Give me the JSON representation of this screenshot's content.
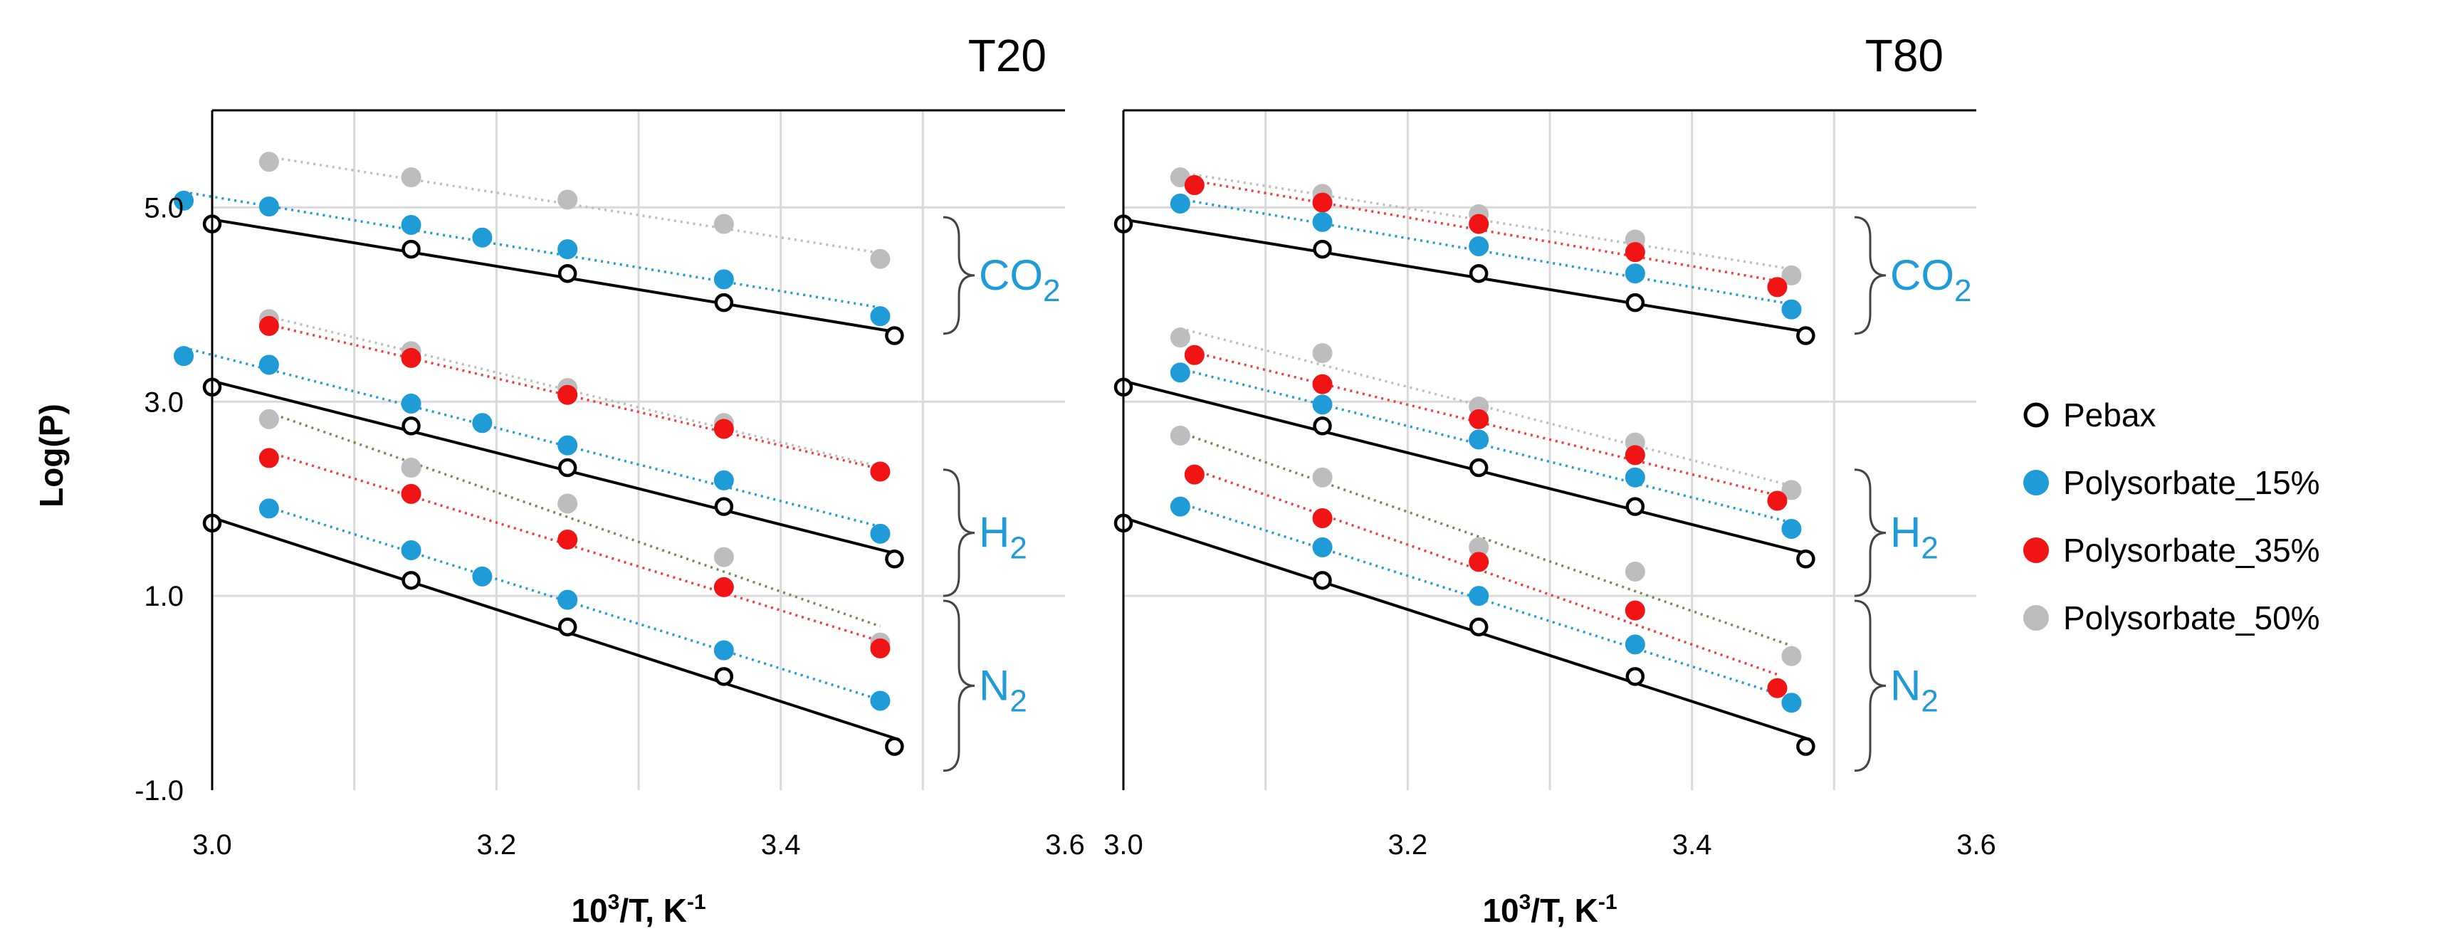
{
  "chart_data": {
    "type": "scatter",
    "y_axis_title": "Log(P)",
    "x_axis_title": {
      "base": "10",
      "sup1": "3",
      "mid": "/T, K",
      "sup2": "-1"
    },
    "xlim": [
      3.0,
      3.6
    ],
    "ylim": [
      -1.0,
      6.0
    ],
    "x_ticks": [
      "3.0",
      "3.2",
      "3.4",
      "3.6"
    ],
    "y_ticks": [
      "5.0",
      "3.0",
      "1.0",
      "-1.0"
    ],
    "legend": [
      {
        "name": "Pebax",
        "color": "#ffffff",
        "edge": "#000000"
      },
      {
        "name": "Polysorbate_15%",
        "color": "#1f9bd7",
        "edge": "#1f9bd7"
      },
      {
        "name": "Polysorbate_35%",
        "color": "#f01414",
        "edge": "#f01414"
      },
      {
        "name": "Polysorbate_50%",
        "color": "#bdbdbd",
        "edge": "#bdbdbd"
      }
    ],
    "gas_labels": [
      {
        "base": "CO",
        "sub": "2",
        "ymin": 3.7,
        "ymax": 4.9
      },
      {
        "base": "H",
        "sub": "2",
        "ymin": 1.0,
        "ymax": 2.3
      },
      {
        "base": "N",
        "sub": "2",
        "ymin": -0.8,
        "ymax": 0.95
      }
    ],
    "panels": [
      {
        "title": "T20",
        "series": [
          {
            "name": "Pebax",
            "gas": "CO2",
            "x": [
              3.0,
              3.14,
              3.25,
              3.36,
              3.48
            ],
            "y": [
              4.83,
              4.57,
              4.32,
              4.02,
              3.68
            ]
          },
          {
            "name": "Polysorbate_15%",
            "gas": "CO2",
            "x": [
              2.98,
              3.04,
              3.14,
              3.19,
              3.25,
              3.36,
              3.47
            ],
            "y": [
              5.07,
              5.01,
              4.82,
              4.69,
              4.57,
              4.26,
              3.88
            ]
          },
          {
            "name": "Polysorbate_50%",
            "gas": "CO2",
            "x": [
              3.04,
              3.14,
              3.25,
              3.36,
              3.47
            ],
            "y": [
              5.47,
              5.31,
              5.08,
              4.83,
              4.47
            ]
          },
          {
            "name": "Pebax",
            "gas": "H2",
            "x": [
              3.0,
              3.14,
              3.25,
              3.36,
              3.48
            ],
            "y": [
              3.15,
              2.75,
              2.32,
              1.92,
              1.38
            ]
          },
          {
            "name": "Polysorbate_15%",
            "gas": "H2",
            "x": [
              2.98,
              3.04,
              3.14,
              3.19,
              3.25,
              3.36,
              3.47
            ],
            "y": [
              3.47,
              3.38,
              2.98,
              2.78,
              2.55,
              2.19,
              1.64
            ]
          },
          {
            "name": "Polysorbate_35%",
            "gas": "H2",
            "x": [
              3.04,
              3.14,
              3.25,
              3.36,
              3.47
            ],
            "y": [
              3.78,
              3.45,
              3.07,
              2.72,
              2.28
            ]
          },
          {
            "name": "Polysorbate_50%",
            "gas": "H2",
            "x": [
              3.04,
              3.14,
              3.25,
              3.36,
              3.47
            ],
            "y": [
              3.85,
              3.52,
              3.14,
              2.78,
              2.28
            ]
          },
          {
            "name": "Pebax",
            "gas": "N2",
            "x": [
              3.0,
              3.14,
              3.25,
              3.36,
              3.48
            ],
            "y": [
              1.75,
              1.16,
              0.68,
              0.17,
              -0.55
            ]
          },
          {
            "name": "Polysorbate_15%",
            "gas": "N2",
            "x": [
              3.04,
              3.14,
              3.19,
              3.25,
              3.36,
              3.47
            ],
            "y": [
              1.9,
              1.47,
              1.2,
              0.96,
              0.44,
              -0.08
            ]
          },
          {
            "name": "Polysorbate_35%",
            "gas": "N2",
            "x": [
              3.04,
              3.14,
              3.25,
              3.36,
              3.47
            ],
            "y": [
              2.42,
              2.05,
              1.58,
              1.09,
              0.46
            ]
          },
          {
            "name": "Polysorbate_50%",
            "gas": "N2",
            "x": [
              3.04,
              3.14,
              3.25,
              3.36,
              3.47
            ],
            "y": [
              2.82,
              2.32,
              1.95,
              1.4,
              0.52
            ]
          }
        ]
      },
      {
        "title": "T80",
        "series": [
          {
            "name": "Pebax",
            "gas": "CO2",
            "x": [
              3.0,
              3.14,
              3.25,
              3.36,
              3.48
            ],
            "y": [
              4.83,
              4.57,
              4.32,
              4.02,
              3.68
            ]
          },
          {
            "name": "Polysorbate_15%",
            "gas": "CO2",
            "x": [
              3.04,
              3.14,
              3.25,
              3.36,
              3.47
            ],
            "y": [
              5.04,
              4.85,
              4.6,
              4.32,
              3.95
            ]
          },
          {
            "name": "Polysorbate_35%",
            "gas": "CO2",
            "x": [
              3.05,
              3.14,
              3.25,
              3.36,
              3.46
            ],
            "y": [
              5.23,
              5.05,
              4.83,
              4.54,
              4.18
            ]
          },
          {
            "name": "Polysorbate_50%",
            "gas": "CO2",
            "x": [
              3.04,
              3.14,
              3.25,
              3.36,
              3.47
            ],
            "y": [
              5.31,
              5.14,
              4.93,
              4.67,
              4.3
            ]
          },
          {
            "name": "Pebax",
            "gas": "H2",
            "x": [
              3.0,
              3.14,
              3.25,
              3.36,
              3.48
            ],
            "y": [
              3.15,
              2.75,
              2.32,
              1.92,
              1.38
            ]
          },
          {
            "name": "Polysorbate_15%",
            "gas": "H2",
            "x": [
              3.04,
              3.14,
              3.25,
              3.36,
              3.47
            ],
            "y": [
              3.3,
              2.97,
              2.61,
              2.22,
              1.69
            ]
          },
          {
            "name": "Polysorbate_35%",
            "gas": "H2",
            "x": [
              3.05,
              3.14,
              3.25,
              3.36,
              3.46
            ],
            "y": [
              3.48,
              3.18,
              2.82,
              2.45,
              1.98
            ]
          },
          {
            "name": "Polysorbate_50%",
            "gas": "H2",
            "x": [
              3.04,
              3.14,
              3.25,
              3.36,
              3.47
            ],
            "y": [
              3.66,
              3.5,
              2.95,
              2.58,
              2.09
            ]
          },
          {
            "name": "Pebax",
            "gas": "N2",
            "x": [
              3.0,
              3.14,
              3.25,
              3.36,
              3.48
            ],
            "y": [
              1.75,
              1.16,
              0.68,
              0.17,
              -0.55
            ]
          },
          {
            "name": "Polysorbate_15%",
            "gas": "N2",
            "x": [
              3.04,
              3.14,
              3.25,
              3.36,
              3.47
            ],
            "y": [
              1.92,
              1.5,
              1.0,
              0.5,
              -0.1
            ]
          },
          {
            "name": "Polysorbate_35%",
            "gas": "N2",
            "x": [
              3.05,
              3.14,
              3.25,
              3.36,
              3.46
            ],
            "y": [
              2.25,
              1.8,
              1.35,
              0.85,
              0.05
            ]
          },
          {
            "name": "Polysorbate_50%",
            "gas": "N2",
            "x": [
              3.04,
              3.14,
              3.25,
              3.36,
              3.47
            ],
            "y": [
              2.65,
              2.22,
              1.5,
              1.25,
              0.38
            ]
          }
        ]
      }
    ]
  }
}
